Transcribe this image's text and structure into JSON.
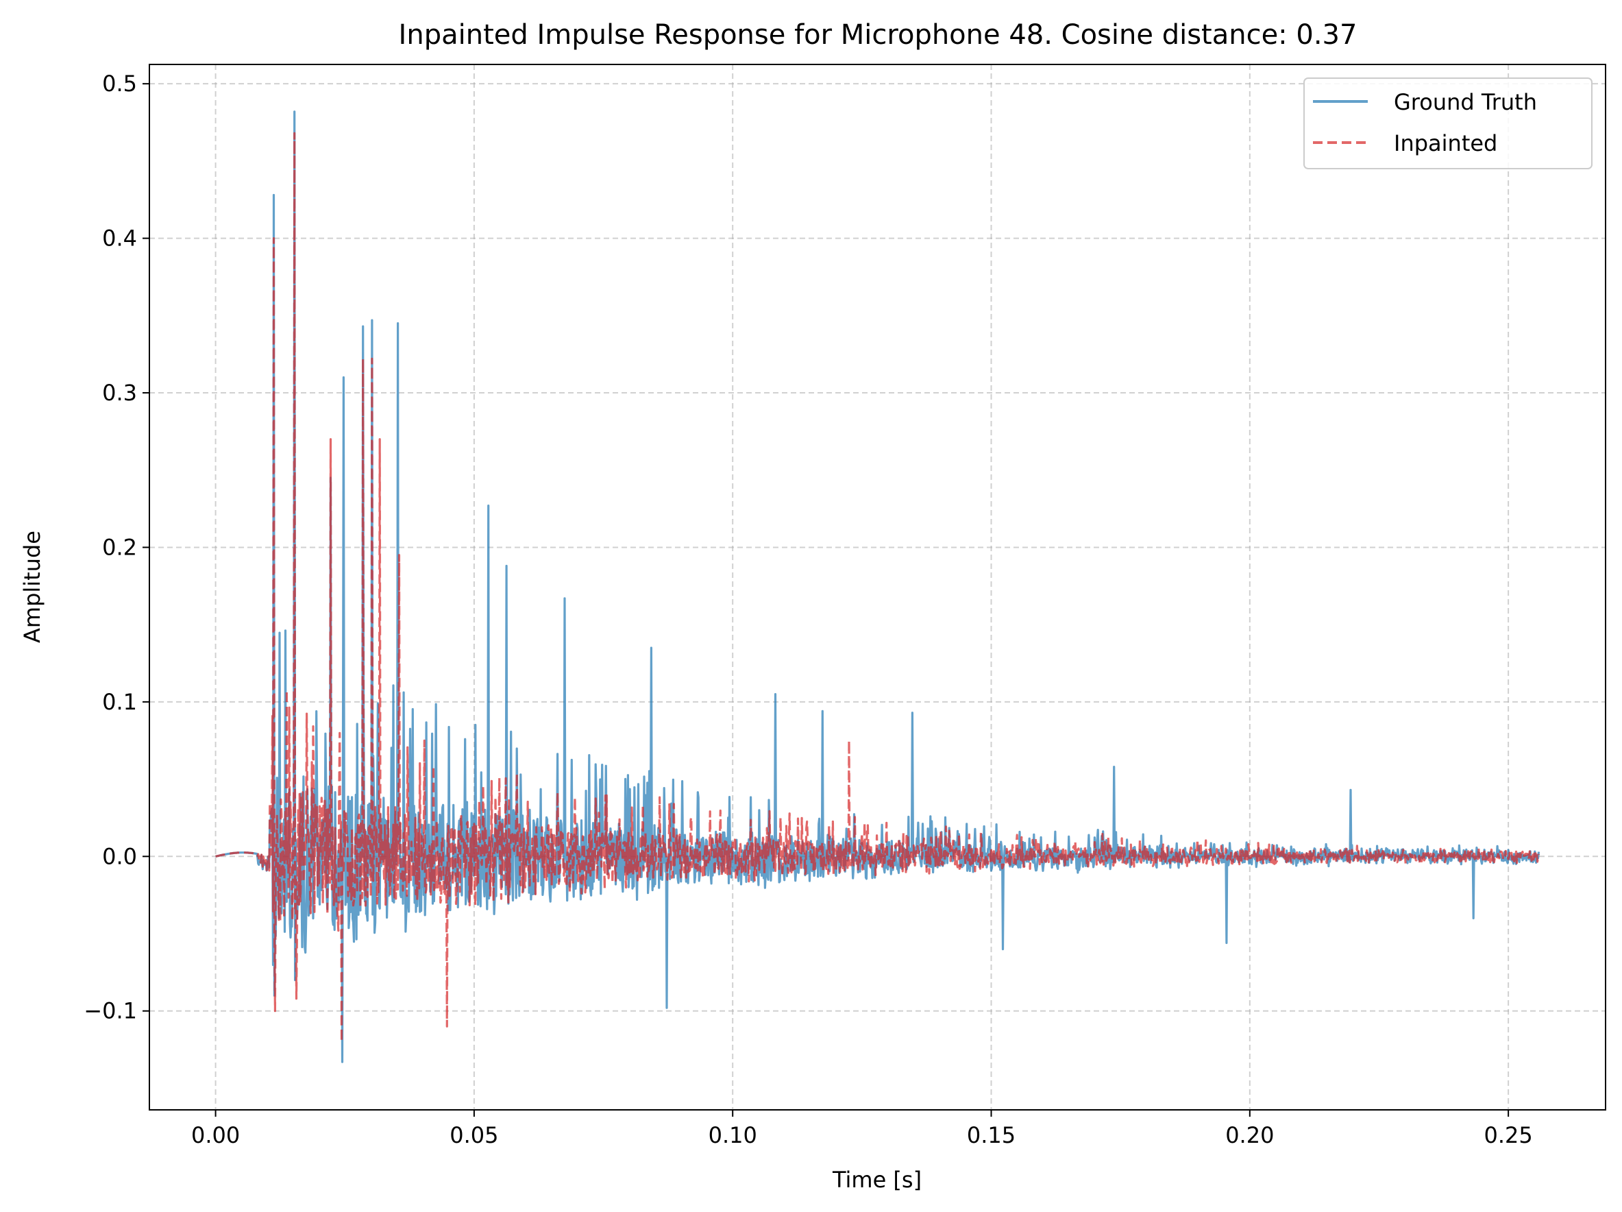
{
  "chart_data": {
    "type": "line",
    "title": "Inpainted Impulse Response for Microphone 48. Cosine distance: 0.37",
    "xlabel": "Time [s]",
    "ylabel": "Amplitude",
    "xlim": [
      -0.0128,
      0.2688
    ],
    "ylim": [
      -0.164,
      0.5125
    ],
    "xticks": [
      0.0,
      0.05,
      0.1,
      0.15,
      0.2,
      0.25
    ],
    "xtick_labels": [
      "0.00",
      "0.05",
      "0.10",
      "0.15",
      "0.20",
      "0.25"
    ],
    "yticks": [
      -0.1,
      0.0,
      0.1,
      0.2,
      0.3,
      0.4,
      0.5
    ],
    "ytick_labels": [
      "−0.1",
      "0.0",
      "0.1",
      "0.2",
      "0.3",
      "0.4",
      "0.5"
    ],
    "grid": true,
    "legend_position": "top-right",
    "sample_rate_hz": 8000,
    "duration_s": 0.256,
    "series": [
      {
        "name": "Ground Truth",
        "color": "#1f77b4",
        "linestyle": "solid",
        "alpha": 0.7,
        "peaks": [
          {
            "t": 0.0112,
            "v": 0.428
          },
          {
            "t": 0.0114,
            "v": -0.09
          },
          {
            "t": 0.0152,
            "v": 0.482
          },
          {
            "t": 0.0154,
            "v": -0.08
          },
          {
            "t": 0.0222,
            "v": 0.245
          },
          {
            "t": 0.0245,
            "v": -0.133
          },
          {
            "t": 0.0248,
            "v": 0.31
          },
          {
            "t": 0.0285,
            "v": 0.343
          },
          {
            "t": 0.0302,
            "v": 0.347
          },
          {
            "t": 0.0352,
            "v": 0.345
          },
          {
            "t": 0.0528,
            "v": 0.227
          },
          {
            "t": 0.0562,
            "v": 0.188
          },
          {
            "t": 0.0675,
            "v": 0.167
          },
          {
            "t": 0.0842,
            "v": 0.135
          },
          {
            "t": 0.0872,
            "v": -0.098
          },
          {
            "t": 0.1082,
            "v": 0.105
          },
          {
            "t": 0.1174,
            "v": 0.094
          },
          {
            "t": 0.1348,
            "v": 0.093
          },
          {
            "t": 0.1522,
            "v": -0.06
          },
          {
            "t": 0.1738,
            "v": 0.058
          },
          {
            "t": 0.1955,
            "v": -0.056
          },
          {
            "t": 0.2195,
            "v": 0.043
          },
          {
            "t": 0.2432,
            "v": -0.04
          }
        ],
        "envelope": {
          "onset_t": 0.0105,
          "peak_pos": 0.16,
          "peak_neg": -0.075,
          "decay_tau_s": 0.07
        }
      },
      {
        "name": "Inpainted",
        "color": "#d62728",
        "linestyle": "dashed",
        "alpha": 0.7,
        "peaks": [
          {
            "t": 0.0112,
            "v": 0.4
          },
          {
            "t": 0.0115,
            "v": -0.1
          },
          {
            "t": 0.0152,
            "v": 0.468
          },
          {
            "t": 0.0156,
            "v": -0.092
          },
          {
            "t": 0.0222,
            "v": 0.27
          },
          {
            "t": 0.0244,
            "v": -0.12
          },
          {
            "t": 0.0285,
            "v": 0.322
          },
          {
            "t": 0.0302,
            "v": 0.322
          },
          {
            "t": 0.0318,
            "v": 0.27
          },
          {
            "t": 0.0355,
            "v": 0.195
          },
          {
            "t": 0.0448,
            "v": -0.11
          },
          {
            "t": 0.1225,
            "v": 0.075
          }
        ],
        "envelope": {
          "onset_t": 0.0105,
          "peak_pos": 0.12,
          "peak_neg": -0.06,
          "decay_tau_s": 0.07
        }
      }
    ]
  }
}
